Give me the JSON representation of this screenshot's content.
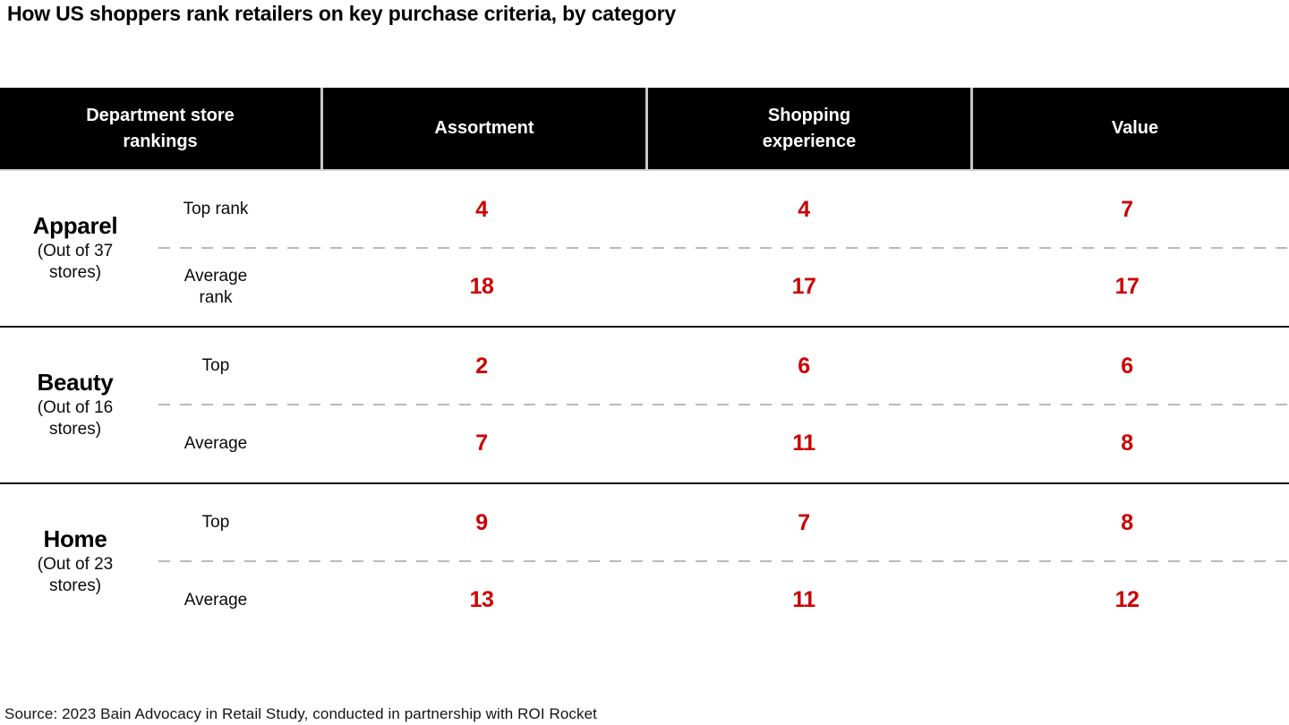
{
  "title": "How US shoppers rank retailers on key purchase criteria, by category",
  "source": "Source: 2023 Bain Advocacy in Retail Study, conducted in partnership with ROI Rocket",
  "colors": {
    "header_bg": "#000000",
    "header_text": "#ffffff",
    "header_divider": "#c8c8c8",
    "value_red": "#cc0000",
    "dashed_line": "#b9b9b9",
    "section_rule": "#111111",
    "background": "#ffffff"
  },
  "chart_data": {
    "type": "table",
    "title": "How US shoppers rank retailers on key purchase criteria, by category",
    "columns": [
      "Department store rankings",
      "Assortment",
      "Shopping experience",
      "Value"
    ],
    "criteria": [
      "Assortment",
      "Shopping experience",
      "Value"
    ],
    "sections": [
      {
        "category": "Apparel",
        "subtitle": "(Out of 37 stores)",
        "rows": [
          {
            "label": "Top rank",
            "values": [
              4,
              4,
              7
            ]
          },
          {
            "label": "Average rank",
            "values": [
              18,
              17,
              17
            ]
          }
        ]
      },
      {
        "category": "Beauty",
        "subtitle": "(Out of 16 stores)",
        "rows": [
          {
            "label": "Top",
            "values": [
              2,
              6,
              6
            ]
          },
          {
            "label": "Average",
            "values": [
              7,
              11,
              8
            ]
          }
        ]
      },
      {
        "category": "Home",
        "subtitle": "(Out of 23 stores)",
        "rows": [
          {
            "label": "Top",
            "values": [
              9,
              7,
              8
            ]
          },
          {
            "label": "Average",
            "values": [
              13,
              11,
              12
            ]
          }
        ]
      }
    ],
    "layout_hints": {
      "row_labels_column": true,
      "dashed_separator_between_top_and_average": true,
      "solid_rule_between_sections": true,
      "values_color": "red",
      "header_style": "black-bar-white-text"
    }
  }
}
